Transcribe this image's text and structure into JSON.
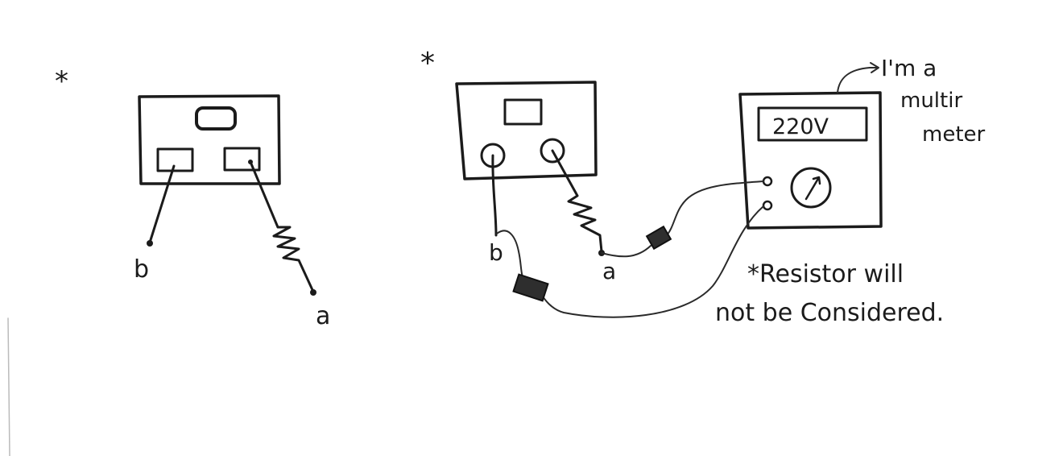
{
  "left_sketch": {
    "marker": "*",
    "terminal_b_label": "b",
    "terminal_a_label": "a"
  },
  "right_sketch": {
    "marker": "*",
    "terminal_b_label": "b",
    "terminal_a_label": "a"
  },
  "multimeter": {
    "reading": "220V",
    "callout_line1": "I'm a",
    "callout_line2": "multir",
    "callout_line3": "meter"
  },
  "note": {
    "line1": "*Resistor will",
    "line2": "not be Considered."
  }
}
